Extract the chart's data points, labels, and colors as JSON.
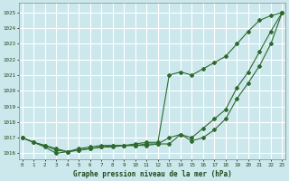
{
  "title": "Graphe pression niveau de la mer (hPa)",
  "bg_color": "#cce8ec",
  "grid_color": "#ffffff",
  "line_color": "#2d6a2d",
  "marker_color": "#2d6a2d",
  "label_color": "#1a4a1a",
  "ylabel_ticks": [
    1016,
    1017,
    1018,
    1019,
    1020,
    1021,
    1022,
    1023,
    1024,
    1025
  ],
  "xlim": [
    -0.3,
    23.3
  ],
  "ylim": [
    1015.6,
    1025.6
  ],
  "hours": [
    0,
    1,
    2,
    3,
    4,
    5,
    6,
    7,
    8,
    9,
    10,
    11,
    12,
    13,
    14,
    15,
    16,
    17,
    18,
    19,
    20,
    21,
    22,
    23
  ],
  "series1": [
    1017.0,
    1016.7,
    1016.5,
    1016.3,
    1016.1,
    1016.2,
    1016.3,
    1016.4,
    1016.4,
    1016.5,
    1016.5,
    1016.5,
    1016.6,
    1016.6,
    1017.2,
    1016.8,
    1017.0,
    1017.5,
    1018.2,
    1019.5,
    1020.5,
    1021.6,
    1023.0,
    1025.0
  ],
  "series2": [
    1017.0,
    1016.7,
    1016.5,
    1016.2,
    1016.1,
    1016.2,
    1016.3,
    1016.4,
    1016.5,
    1016.5,
    1016.5,
    1016.6,
    1016.6,
    1017.0,
    1017.2,
    1017.0,
    1017.6,
    1018.2,
    1018.8,
    1020.2,
    1021.2,
    1022.5,
    1023.8,
    1025.0
  ],
  "series3": [
    1017.0,
    1016.7,
    1016.4,
    1016.0,
    1016.1,
    1016.3,
    1016.4,
    1016.5,
    1016.5,
    1016.5,
    1016.6,
    1016.7,
    1016.7,
    1021.0,
    1021.2,
    1021.0,
    1021.4,
    1021.8,
    1022.2,
    1023.0,
    1023.8,
    1024.5,
    1024.8,
    1025.0
  ]
}
